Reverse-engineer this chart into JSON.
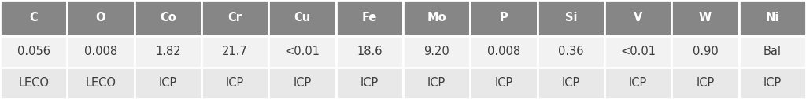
{
  "columns": [
    "C",
    "O",
    "Co",
    "Cr",
    "Cu",
    "Fe",
    "Mo",
    "P",
    "Si",
    "V",
    "W",
    "Ni"
  ],
  "row1": [
    "0.056",
    "0.008",
    "1.82",
    "21.7",
    "<0.01",
    "18.6",
    "9.20",
    "0.008",
    "0.36",
    "<0.01",
    "0.90",
    "Bal"
  ],
  "row2": [
    "LECO",
    "LECO",
    "ICP",
    "ICP",
    "ICP",
    "ICP",
    "ICP",
    "ICP",
    "ICP",
    "ICP",
    "ICP",
    "ICP"
  ],
  "header_bg": "#868686",
  "header_text": "#ffffff",
  "row_bg1": "#f2f2f2",
  "row_bg2": "#e8e8e8",
  "border_color": "#ffffff",
  "text_color": "#3c3c3c",
  "font_size": 10.5,
  "header_font_size": 10.5,
  "fig_width": 10.24,
  "fig_height": 1.26,
  "dpi": 100
}
